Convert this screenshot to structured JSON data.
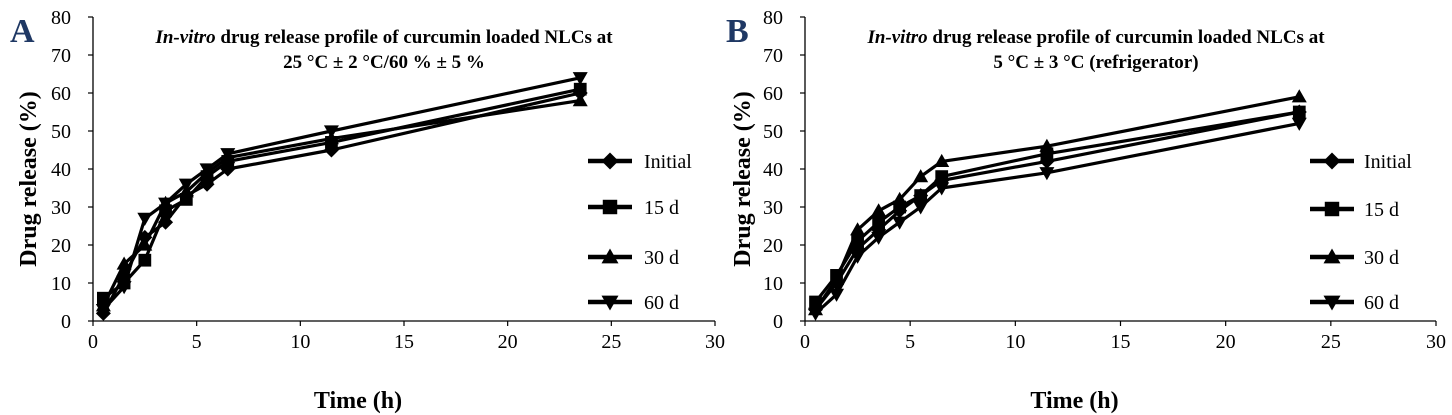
{
  "chart_data": [
    {
      "panel_letter": "A",
      "type": "line",
      "title_italic": "In-vitro",
      "title_rest": " drug release profile of curcumin loaded NLCs at",
      "title_line2": "25 °C ± 2 °C/60 % ± 5 %",
      "xlabel": "Time (h)",
      "ylabel": "Drug release (%)",
      "xlim": [
        0,
        30
      ],
      "ylim": [
        0,
        80
      ],
      "xticks": [
        "0",
        "5",
        "10",
        "15",
        "20",
        "25",
        "30"
      ],
      "yticks": [
        "0",
        "10",
        "20",
        "30",
        "40",
        "50",
        "60",
        "70",
        "80"
      ],
      "x": [
        0.5,
        1.5,
        2.5,
        3.5,
        4.5,
        5.5,
        6.5,
        11.5,
        23.5
      ],
      "series": [
        {
          "name": "Initial",
          "marker": "diamond",
          "values": [
            2,
            12,
            22,
            26,
            33,
            36,
            40,
            45,
            60
          ]
        },
        {
          "name": "15 d",
          "marker": "square",
          "values": [
            6,
            10,
            16,
            29,
            32,
            38,
            42,
            47,
            61
          ]
        },
        {
          "name": "30 d",
          "marker": "triangle-up",
          "values": [
            4,
            15,
            20,
            31,
            34,
            39,
            43,
            48,
            58
          ]
        },
        {
          "name": "60 d",
          "marker": "triangle-down",
          "values": [
            3,
            9,
            27,
            31,
            36,
            40,
            44,
            50,
            64
          ]
        }
      ],
      "grid": false,
      "legend_position": "right"
    },
    {
      "panel_letter": "B",
      "type": "line",
      "title_italic": "In-vitro",
      "title_rest": " drug release profile of curcumin loaded NLCs at",
      "title_line2": "5 °C ± 3 °C (refrigerator)",
      "xlabel": "Time (h)",
      "ylabel": "Drug release (%)",
      "xlim": [
        0,
        30
      ],
      "ylim": [
        0,
        80
      ],
      "xticks": [
        "0",
        "5",
        "10",
        "15",
        "20",
        "25",
        "30"
      ],
      "yticks": [
        "0",
        "10",
        "20",
        "30",
        "40",
        "50",
        "60",
        "70",
        "80"
      ],
      "x": [
        0.5,
        1.5,
        2.5,
        3.5,
        4.5,
        5.5,
        6.5,
        11.5,
        23.5
      ],
      "series": [
        {
          "name": "Initial",
          "marker": "diamond",
          "values": [
            3,
            10,
            19,
            24,
            29,
            33,
            37,
            42,
            55
          ]
        },
        {
          "name": "15 d",
          "marker": "square",
          "values": [
            5,
            12,
            21,
            26,
            30,
            33,
            38,
            44,
            55
          ]
        },
        {
          "name": "30 d",
          "marker": "triangle-up",
          "values": [
            3,
            11,
            24,
            29,
            32,
            38,
            42,
            46,
            59
          ]
        },
        {
          "name": "60 d",
          "marker": "triangle-down",
          "values": [
            2,
            7,
            17,
            22,
            26,
            30,
            35,
            39,
            52
          ]
        }
      ],
      "grid": false,
      "legend_position": "right"
    }
  ],
  "colors": {
    "ink": "#000000",
    "panel_letter": "#1F3864",
    "background": "#ffffff"
  }
}
